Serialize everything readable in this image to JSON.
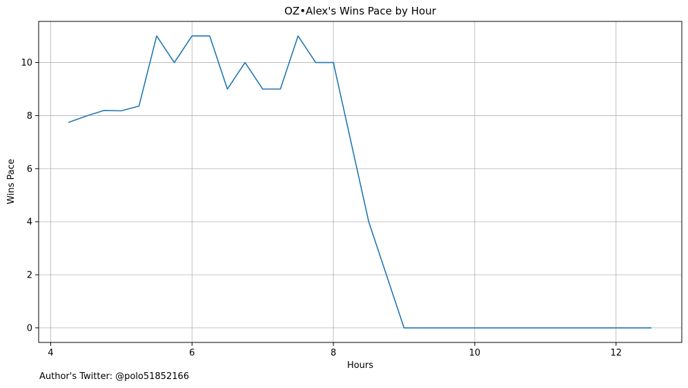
{
  "chart_data": {
    "type": "line",
    "title": "OZ•Alex's Wins Pace by Hour",
    "xlabel": "Hours",
    "ylabel": "Wins Pace",
    "xlim": [
      3.83,
      12.93
    ],
    "ylim": [
      -0.55,
      11.55
    ],
    "xticks": [
      4,
      6,
      8,
      10,
      12
    ],
    "yticks": [
      0,
      2,
      4,
      6,
      8,
      10
    ],
    "grid": true,
    "color": "#1f77b4",
    "x": [
      4.25,
      4.5,
      4.75,
      5.0,
      5.25,
      5.5,
      5.75,
      6.0,
      6.25,
      6.5,
      6.75,
      7.0,
      7.25,
      7.5,
      7.75,
      8.0,
      8.25,
      8.5,
      8.75,
      9.0,
      9.25,
      9.5,
      9.75,
      10.0,
      10.25,
      10.5,
      10.75,
      11.0,
      11.25,
      11.5,
      11.75,
      12.0,
      12.25,
      12.5
    ],
    "y": [
      7.74,
      7.98,
      8.19,
      8.18,
      8.36,
      11,
      10,
      11,
      11,
      9,
      10,
      9,
      9,
      11,
      10,
      10,
      7,
      4,
      2,
      0,
      0,
      0,
      0,
      0,
      0,
      0,
      0,
      0,
      0,
      0,
      0,
      0,
      0,
      0
    ]
  },
  "footnote": "Author's Twitter: @polo51852166"
}
